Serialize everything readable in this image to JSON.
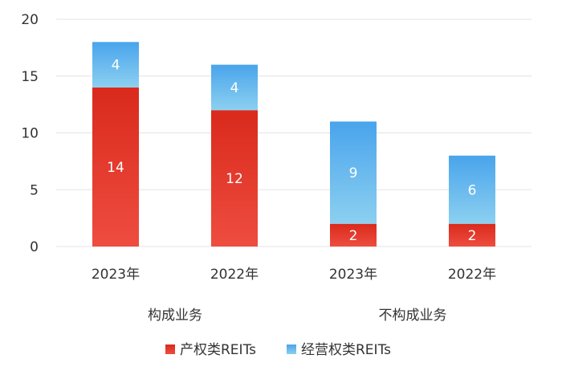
{
  "chart_data": {
    "type": "bar",
    "stacked": true,
    "categories": [
      "2023年",
      "2022年",
      "2023年",
      "2022年"
    ],
    "groups": [
      {
        "label": "构成业务",
        "categories": [
          0,
          1
        ]
      },
      {
        "label": "不构成业务",
        "categories": [
          2,
          3
        ]
      }
    ],
    "series": [
      {
        "name": "产权类REITs",
        "values": [
          14,
          12,
          2,
          2
        ],
        "color": "#e8392b",
        "gradient_top": "#d92a1c",
        "gradient_bottom": "#ee4d40"
      },
      {
        "name": "经营权类REITs",
        "values": [
          4,
          4,
          9,
          6
        ],
        "color": "#5bb0ea",
        "gradient_top": "#49a4ec",
        "gradient_bottom": "#8cd0f0"
      }
    ],
    "ylim": [
      0,
      20
    ],
    "yticks": [
      0,
      5,
      10,
      15,
      20
    ],
    "grid": true,
    "legend_position": "bottom",
    "title": "",
    "xlabel": "",
    "ylabel": ""
  }
}
